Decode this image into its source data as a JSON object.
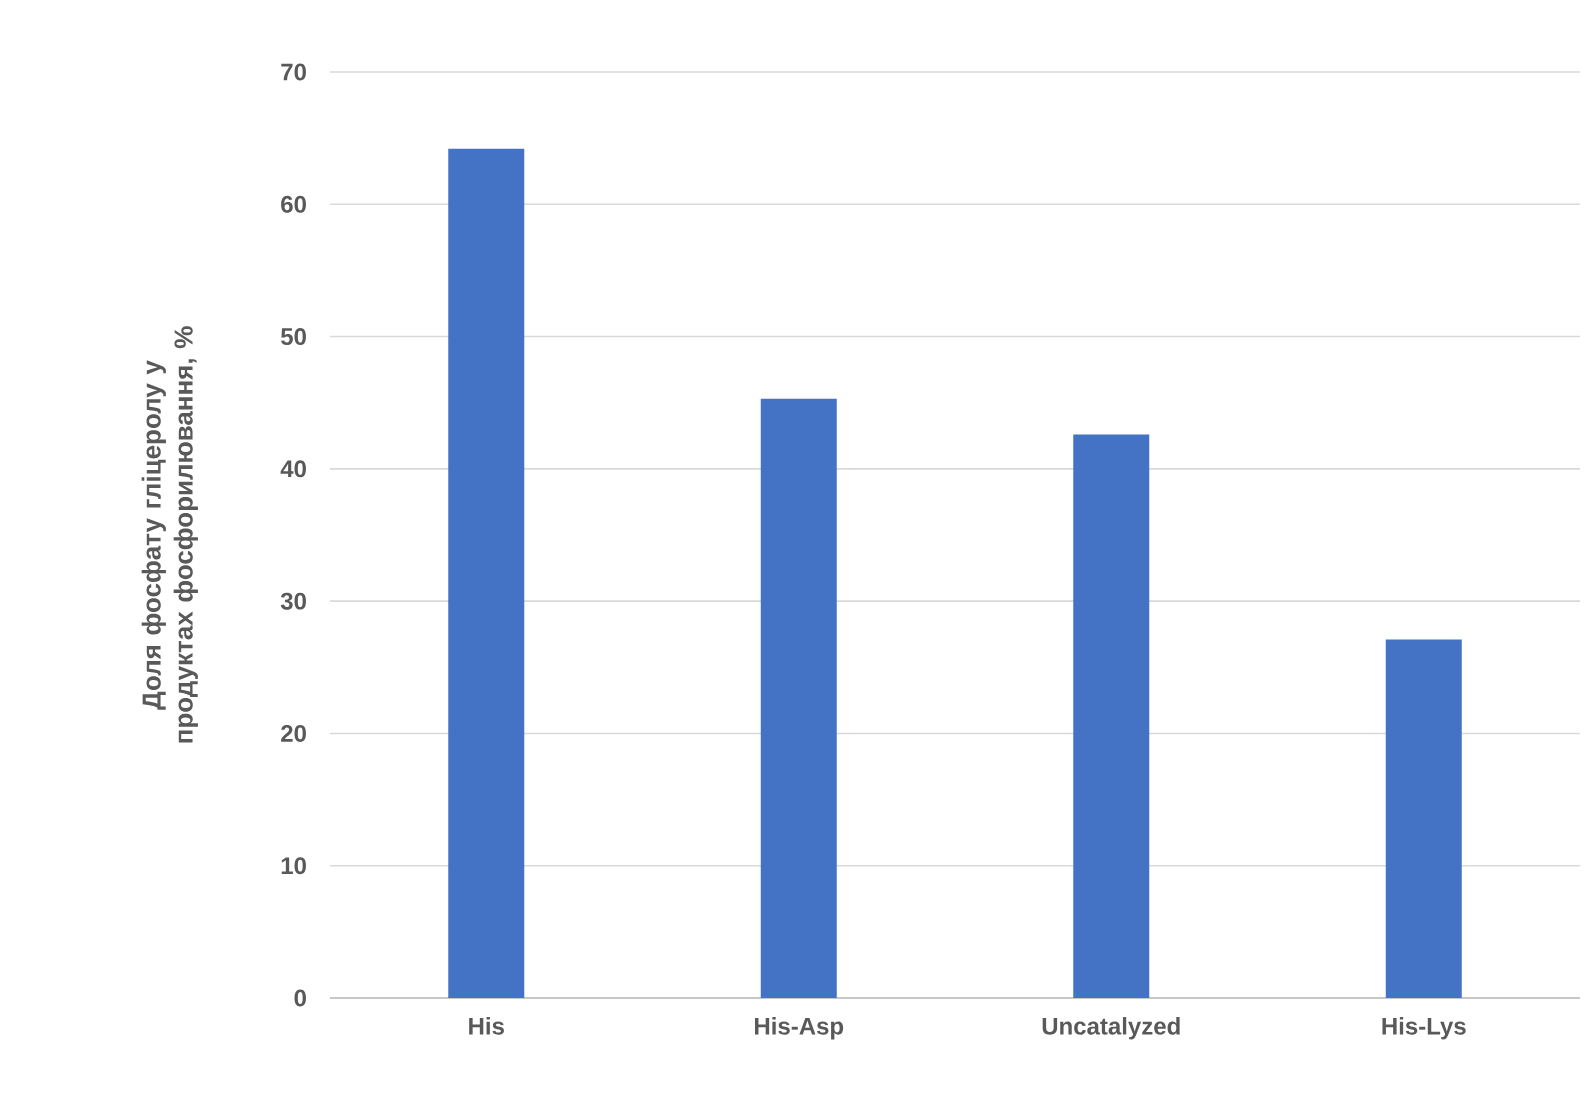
{
  "chart_data": {
    "type": "bar",
    "ylabel": "Доля фосфату гліцеролу у продуктах фосфорилювання, %",
    "categories": [
      "His",
      "His-Asp",
      "Uncatalyzed",
      "His-Lys"
    ],
    "values": [
      64.2,
      45.3,
      42.6,
      27.1
    ],
    "color": "#4472c4",
    "ylim": [
      0,
      70
    ],
    "yticks": [
      0,
      10,
      20,
      30,
      40,
      50,
      60,
      70
    ],
    "grid": "y"
  }
}
